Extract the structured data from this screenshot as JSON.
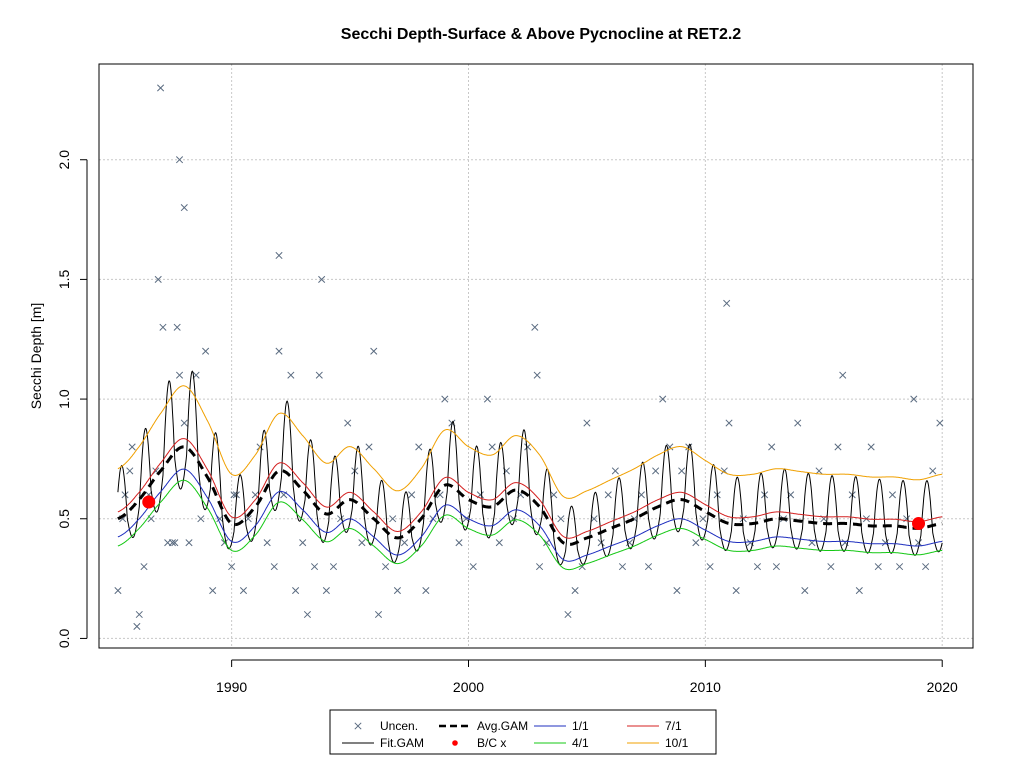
{
  "chart_data": {
    "type": "line",
    "title": "Secchi Depth-Surface & Above Pycnocline at RET2.2",
    "xlabel": "",
    "ylabel": "Secchi Depth [m]",
    "xlim": [
      1984.4,
      2021.3
    ],
    "ylim": [
      -0.04,
      2.4
    ],
    "xticks": [
      1990,
      2000,
      2010,
      2020
    ],
    "xtick_labels": [
      "1990",
      "2000",
      "2010",
      "2020"
    ],
    "yticks": [
      0.0,
      0.5,
      1.0,
      1.5,
      2.0
    ],
    "ytick_labels": [
      "0.0",
      "0.5",
      "1.0",
      "1.5",
      "2.0"
    ],
    "grid": true,
    "legend_position": "bottom",
    "legend": [
      {
        "label": "Uncen.",
        "kind": "cross",
        "color": "#5a6b80"
      },
      {
        "label": "Avg.GAM",
        "kind": "dashed-line",
        "color": "#000000"
      },
      {
        "label": "1/1",
        "kind": "line",
        "color": "#1f2fbf"
      },
      {
        "label": "7/1",
        "kind": "line",
        "color": "#d42020"
      },
      {
        "label": "Fit.GAM",
        "kind": "line",
        "color": "#000000"
      },
      {
        "label": "B/C x",
        "kind": "dot",
        "color": "#ff0000"
      },
      {
        "label": "4/1",
        "kind": "line",
        "color": "#14c814"
      },
      {
        "label": "10/1",
        "kind": "line",
        "color": "#f0a000"
      }
    ],
    "avg_gam_knots": {
      "x": [
        1985.2,
        1986.0,
        1987.0,
        1988.0,
        1989.0,
        1990.0,
        1991.0,
        1992.0,
        1993.0,
        1994.0,
        1995.0,
        1996.0,
        1997.0,
        1998.0,
        1999.0,
        2000.0,
        2001.0,
        2002.0,
        2003.0,
        2004.0,
        2005.0,
        2006.0,
        2007.0,
        2008.0,
        2009.0,
        2010.0,
        2011.0,
        2012.0,
        2013.0,
        2014.0,
        2015.0,
        2016.0,
        2017.0,
        2018.0,
        2019.0,
        2020.0
      ],
      "y": [
        0.5,
        0.57,
        0.7,
        0.8,
        0.67,
        0.48,
        0.55,
        0.7,
        0.62,
        0.52,
        0.58,
        0.5,
        0.42,
        0.5,
        0.64,
        0.58,
        0.55,
        0.62,
        0.55,
        0.4,
        0.42,
        0.46,
        0.5,
        0.55,
        0.58,
        0.53,
        0.48,
        0.48,
        0.5,
        0.49,
        0.48,
        0.48,
        0.47,
        0.47,
        0.46,
        0.48
      ]
    },
    "quantile_offsets": {
      "1/1": -0.08,
      "4/1": -0.12,
      "7/1": 0.03,
      "10/1": 0.22
    },
    "seasonal_amplitude": 0.18,
    "bc_points": {
      "x": [
        1986.5,
        2019.0
      ],
      "y": [
        0.57,
        0.48
      ]
    },
    "uncensored_points": {
      "x": [
        1985.2,
        1985.4,
        1985.5,
        1985.7,
        1985.8,
        1986.0,
        1986.1,
        1986.3,
        1986.5,
        1986.6,
        1986.8,
        1987.0,
        1987.1,
        1987.3,
        1987.5,
        1987.7,
        1987.8,
        1988.0,
        1988.2,
        1988.5,
        1988.7,
        1988.9,
        1989.2,
        1989.5,
        1989.7,
        1990.0,
        1990.2,
        1990.5,
        1990.7,
        1991.0,
        1991.2,
        1991.5,
        1991.8,
        1992.0,
        1992.2,
        1992.5,
        1992.7,
        1993.0,
        1993.2,
        1993.5,
        1993.7,
        1994.0,
        1994.3,
        1994.6,
        1994.9,
        1995.2,
        1995.5,
        1995.8,
        1996.0,
        1996.2,
        1996.5,
        1996.8,
        1997.0,
        1997.3,
        1997.6,
        1997.9,
        1998.2,
        1998.5,
        1998.8,
        1999.0,
        1999.3,
        1999.6,
        1999.9,
        2000.2,
        2000.5,
        2000.8,
        2001.0,
        2001.3,
        2001.6,
        2001.9,
        2002.2,
        2002.5,
        2002.8,
        2003.0,
        2003.3,
        2003.6,
        2003.9,
        2004.2,
        2004.5,
        2004.8,
        2005.0,
        2005.3,
        2005.6,
        2005.9,
        2006.2,
        2006.5,
        2006.8,
        2007.0,
        2007.3,
        2007.6,
        2007.9,
        2008.2,
        2008.5,
        2008.8,
        2009.0,
        2009.3,
        2009.6,
        2009.9,
        2010.2,
        2010.5,
        2010.8,
        2011.0,
        2011.3,
        2011.6,
        2011.9,
        2012.2,
        2012.5,
        2012.8,
        2013.0,
        2013.3,
        2013.6,
        2013.9,
        2014.2,
        2014.5,
        2014.8,
        2015.0,
        2015.3,
        2015.6,
        2015.9,
        2016.2,
        2016.5,
        2016.8,
        2017.0,
        2017.3,
        2017.6,
        2017.9,
        2018.2,
        2018.5,
        2018.8,
        2019.0,
        2019.3,
        2019.6,
        2019.9,
        1986.9,
        1987.6,
        1987.8,
        1992.0,
        1993.8,
        2002.9,
        2010.9,
        2015.8,
        1988.0,
        1990.1
      ],
      "y": [
        0.2,
        0.5,
        0.6,
        0.7,
        0.8,
        0.05,
        0.1,
        0.3,
        0.6,
        0.5,
        0.7,
        2.3,
        1.3,
        0.4,
        0.4,
        1.3,
        1.1,
        0.9,
        0.4,
        1.1,
        0.5,
        1.2,
        0.2,
        0.5,
        0.4,
        0.3,
        0.6,
        0.2,
        0.5,
        0.6,
        0.8,
        0.4,
        0.3,
        1.2,
        0.6,
        1.1,
        0.2,
        0.4,
        0.1,
        0.3,
        1.1,
        0.2,
        0.3,
        0.5,
        0.9,
        0.7,
        0.4,
        0.8,
        1.2,
        0.1,
        0.3,
        0.5,
        0.2,
        0.4,
        0.6,
        0.8,
        0.2,
        0.5,
        0.6,
        1.0,
        0.9,
        0.4,
        0.5,
        0.3,
        0.6,
        1.0,
        0.8,
        0.4,
        0.7,
        0.5,
        0.6,
        0.8,
        1.3,
        0.3,
        0.4,
        0.6,
        0.5,
        0.1,
        0.2,
        0.3,
        0.9,
        0.5,
        0.4,
        0.6,
        0.7,
        0.3,
        0.4,
        0.5,
        0.6,
        0.3,
        0.7,
        1.0,
        0.8,
        0.2,
        0.7,
        0.8,
        0.4,
        0.5,
        0.3,
        0.6,
        0.7,
        0.9,
        0.2,
        0.5,
        0.4,
        0.3,
        0.6,
        0.8,
        0.3,
        0.5,
        0.6,
        0.9,
        0.2,
        0.4,
        0.7,
        0.5,
        0.3,
        0.8,
        0.4,
        0.6,
        0.2,
        0.5,
        0.8,
        0.3,
        0.4,
        0.6,
        0.3,
        0.5,
        1.0,
        0.4,
        0.3,
        0.7,
        0.9,
        1.5,
        0.4,
        2.0,
        1.6,
        1.5,
        1.1,
        1.4,
        1.1,
        1.8,
        0.6
      ]
    }
  }
}
